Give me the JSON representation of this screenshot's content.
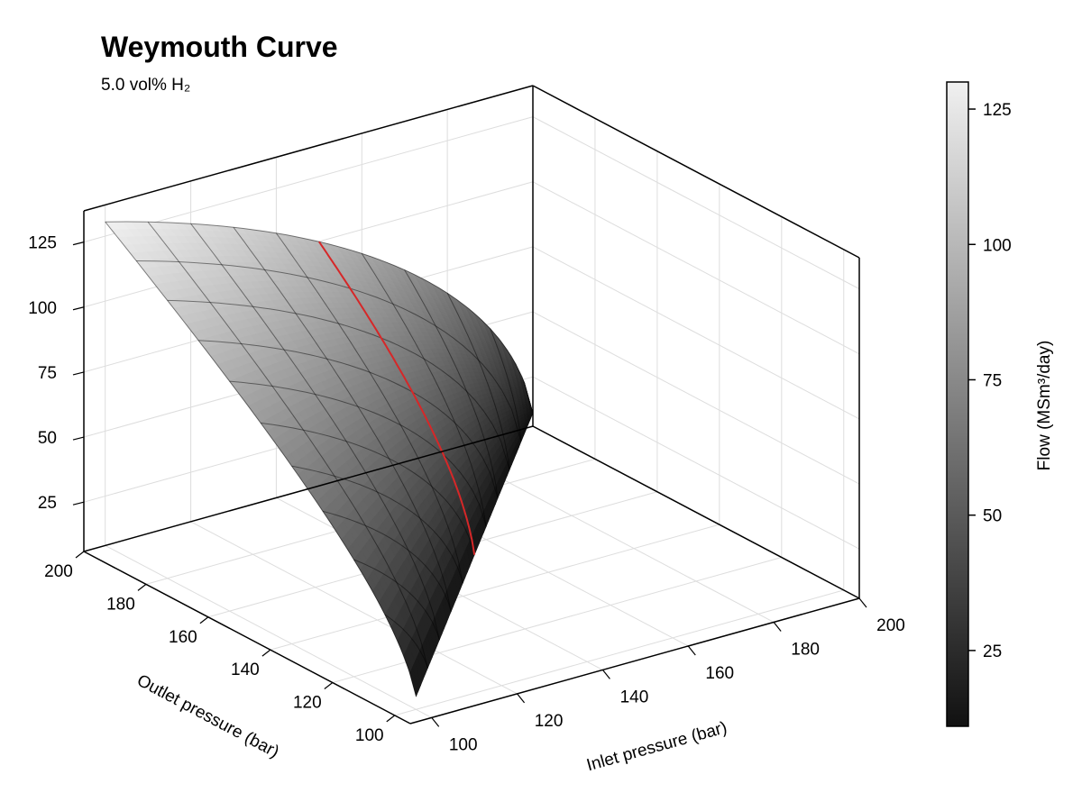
{
  "chart_data": {
    "type": "surface",
    "title": "Weymouth Curve",
    "subtitle": "5.0 vol% H₂",
    "xlabel": "Outlet pressure (bar)",
    "ylabel": "Inlet pressure (bar)",
    "x_ticks": [
      100,
      120,
      140,
      160,
      180,
      200
    ],
    "y_ticks": [
      100,
      120,
      140,
      160,
      180,
      200
    ],
    "z_ticks": [
      25,
      50,
      75,
      100,
      125
    ],
    "xlim": [
      95,
      200
    ],
    "ylim": [
      95,
      200
    ],
    "zlim": [
      6,
      137
    ],
    "surface": {
      "k": 0.7506,
      "c": 215,
      "outlet_range": [
        100,
        200
      ],
      "inlet_range": [
        100,
        200
      ],
      "mesh_step": 10
    },
    "highlight_line": {
      "inlet": 150,
      "color": "#d62728"
    },
    "colorbar": {
      "label": "Flow (MSm³/day)",
      "ticks": [
        25,
        50,
        75,
        100,
        125
      ],
      "range": [
        11,
        130
      ],
      "colormap": "grays",
      "low_color": "#111111",
      "high_color": "#f0f0f0"
    },
    "grid": true
  }
}
